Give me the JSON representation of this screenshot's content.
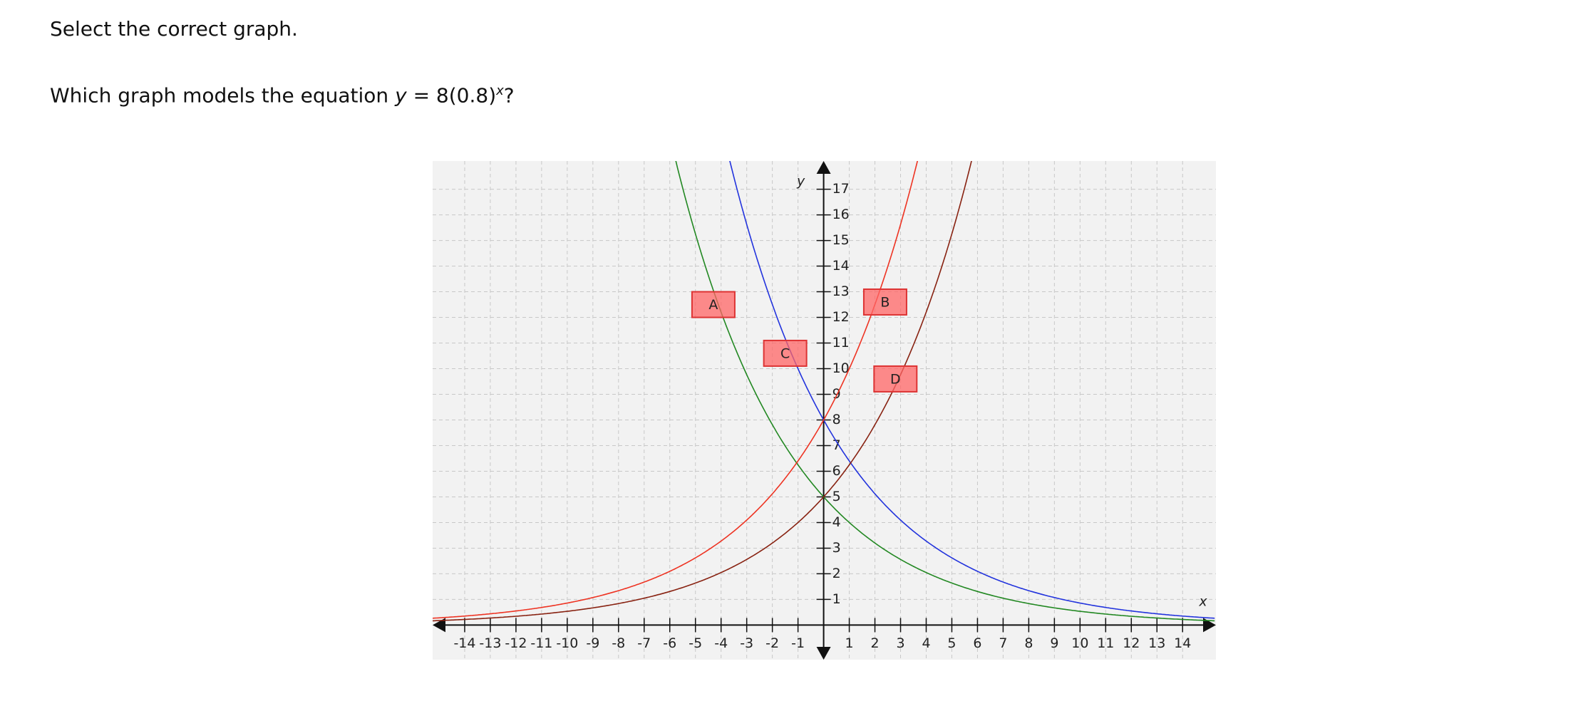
{
  "prompt": "Select the correct graph.",
  "question": {
    "before": "Which graph models the equation ",
    "variable": "y",
    "equation": " = 8(0.8)",
    "exponent": "x",
    "after": "?"
  },
  "graph": {
    "x_label": "x",
    "y_label": "y",
    "xlim": [
      -15.25,
      15.3
    ],
    "ylim": [
      -1.35,
      18.1
    ],
    "xticks": [
      -14,
      -13,
      -12,
      -11,
      -10,
      -9,
      -8,
      -7,
      -6,
      -5,
      -4,
      -3,
      -2,
      -1,
      1,
      2,
      3,
      4,
      5,
      6,
      7,
      8,
      9,
      10,
      11,
      12,
      13,
      14
    ],
    "yticks": [
      1,
      2,
      3,
      4,
      5,
      6,
      7,
      8,
      9,
      10,
      11,
      12,
      13,
      14,
      15,
      16,
      17
    ],
    "grid": true,
    "curves": [
      {
        "color": "#2233dd",
        "a": 8,
        "b": 0.8
      },
      {
        "color": "#228822",
        "a": 5,
        "b": 0.8
      },
      {
        "color": "#ee3322",
        "a": 8,
        "b": 1.25
      },
      {
        "color": "#882211",
        "a": 5,
        "b": 1.25
      }
    ],
    "options": [
      {
        "label": "A",
        "x": -4.3,
        "y": 12.5
      },
      {
        "label": "B",
        "x": 2.4,
        "y": 12.6
      },
      {
        "label": "C",
        "x": -1.5,
        "y": 10.6
      },
      {
        "label": "D",
        "x": 2.8,
        "y": 9.6
      }
    ]
  }
}
